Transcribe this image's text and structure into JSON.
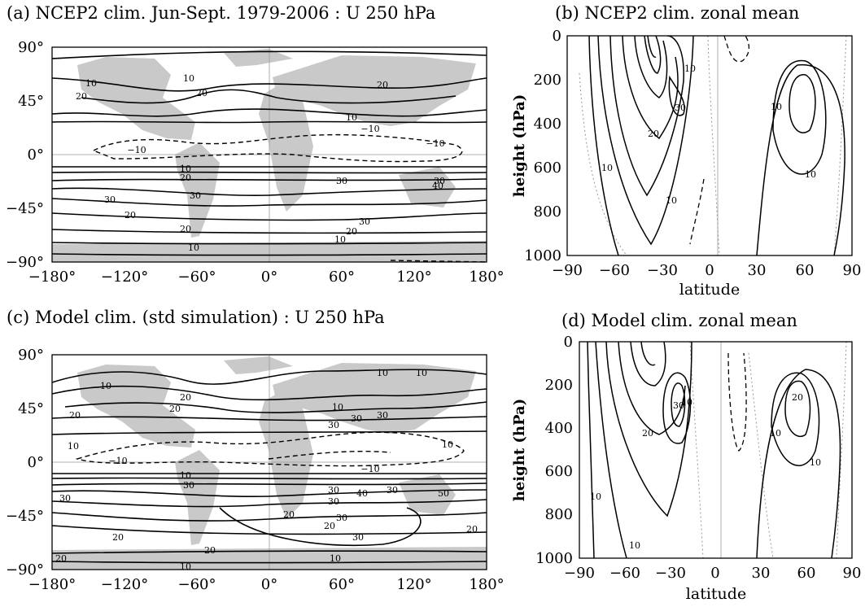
{
  "colors": {
    "land": "#c9c9c9",
    "contour": "#000000",
    "zero_contour": "#999999",
    "frame": "#000000"
  },
  "panels": {
    "a": {
      "title": "(a) NCEP2 clim. Jun-Sept. 1979-2006 : U 250 hPa",
      "y_ticks": [
        "90°",
        "45°",
        "0°",
        "−45°",
        "−90°"
      ],
      "x_ticks": [
        "−180°",
        "−120°",
        "−60°",
        "0°",
        "60°",
        "120°",
        "180°"
      ]
    },
    "b": {
      "title": "(b) NCEP2 clim. zonal mean",
      "ylabel": "height (hPa)",
      "xlabel": "latitude",
      "y_ticks": [
        "0",
        "200",
        "400",
        "600",
        "800",
        "1000"
      ],
      "x_ticks": [
        "−90",
        "−60",
        "−30",
        "0",
        "30",
        "60",
        "90"
      ]
    },
    "c": {
      "title": "(c) Model clim. (std simulation) : U 250 hPa",
      "y_ticks": [
        "90°",
        "45°",
        "0°",
        "−45°",
        "−90°"
      ],
      "x_ticks": [
        "−180°",
        "−120°",
        "−60°",
        "0°",
        "60°",
        "120°",
        "180°"
      ]
    },
    "d": {
      "title": "(d) Model clim. zonal mean",
      "ylabel": "height (hPa)",
      "xlabel": "latitude",
      "y_ticks": [
        "0",
        "200",
        "400",
        "600",
        "800",
        "1000"
      ],
      "x_ticks": [
        "−90",
        "−60",
        "−30",
        "0",
        "30",
        "60",
        "90"
      ]
    }
  },
  "chart_data": [
    {
      "type": "contour",
      "title": "(a) NCEP2 clim. Jun-Sept. 1979-2006 : U 250 hPa",
      "x_range": [
        -180,
        180
      ],
      "y_range": [
        -90,
        90
      ],
      "contour_labels": [
        "10",
        "20",
        "10",
        "10",
        "20",
        "10",
        "−10",
        "−10",
        "−10",
        "10",
        "20",
        "10",
        "30",
        "30",
        "30",
        "40",
        "20",
        "20",
        "30",
        "20",
        "10",
        "10"
      ],
      "profile": {
        "lat": [
          80,
          60,
          45,
          35,
          20,
          5,
          -10,
          -20,
          -30,
          -45,
          -55,
          -65,
          -80
        ],
        "u": [
          8,
          15,
          20,
          12,
          0,
          -8,
          5,
          25,
          32,
          22,
          28,
          15,
          6
        ]
      }
    },
    {
      "type": "contour",
      "title": "(b) NCEP2 clim. zonal mean",
      "xlabel": "latitude",
      "ylabel": "height (hPa)",
      "x_range": [
        -90,
        90
      ],
      "y_range": [
        1000,
        0
      ],
      "contour_labels": [
        "10",
        "10",
        "30",
        "20",
        "10",
        "10",
        "10"
      ]
    },
    {
      "type": "contour",
      "title": "(c) Model clim. (std simulation) : U 250 hPa",
      "x_range": [
        -180,
        180
      ],
      "y_range": [
        -90,
        90
      ],
      "contour_labels": [
        "10",
        "10",
        "20",
        "20",
        "20",
        "10",
        "10",
        "30",
        "30",
        "30",
        "−10",
        "10",
        "−10",
        "10",
        "30",
        "30",
        "30",
        "40",
        "30",
        "50",
        "20",
        "30",
        "20",
        "30",
        "20",
        "20",
        "20",
        "10",
        "10"
      ],
      "profile": {
        "lat": [
          80,
          60,
          45,
          35,
          20,
          5,
          -10,
          -20,
          -30,
          -45,
          -55,
          -65,
          -80
        ],
        "u": [
          10,
          18,
          26,
          20,
          0,
          -10,
          8,
          35,
          40,
          25,
          30,
          20,
          10
        ]
      }
    },
    {
      "type": "contour",
      "title": "(d) Model clim. zonal mean",
      "xlabel": "latitude",
      "ylabel": "height (hPa)",
      "x_range": [
        -90,
        90
      ],
      "y_range": [
        1000,
        0
      ],
      "contour_labels": [
        "10",
        "20",
        "30",
        "10",
        "20",
        "10",
        "10",
        "10"
      ]
    }
  ]
}
